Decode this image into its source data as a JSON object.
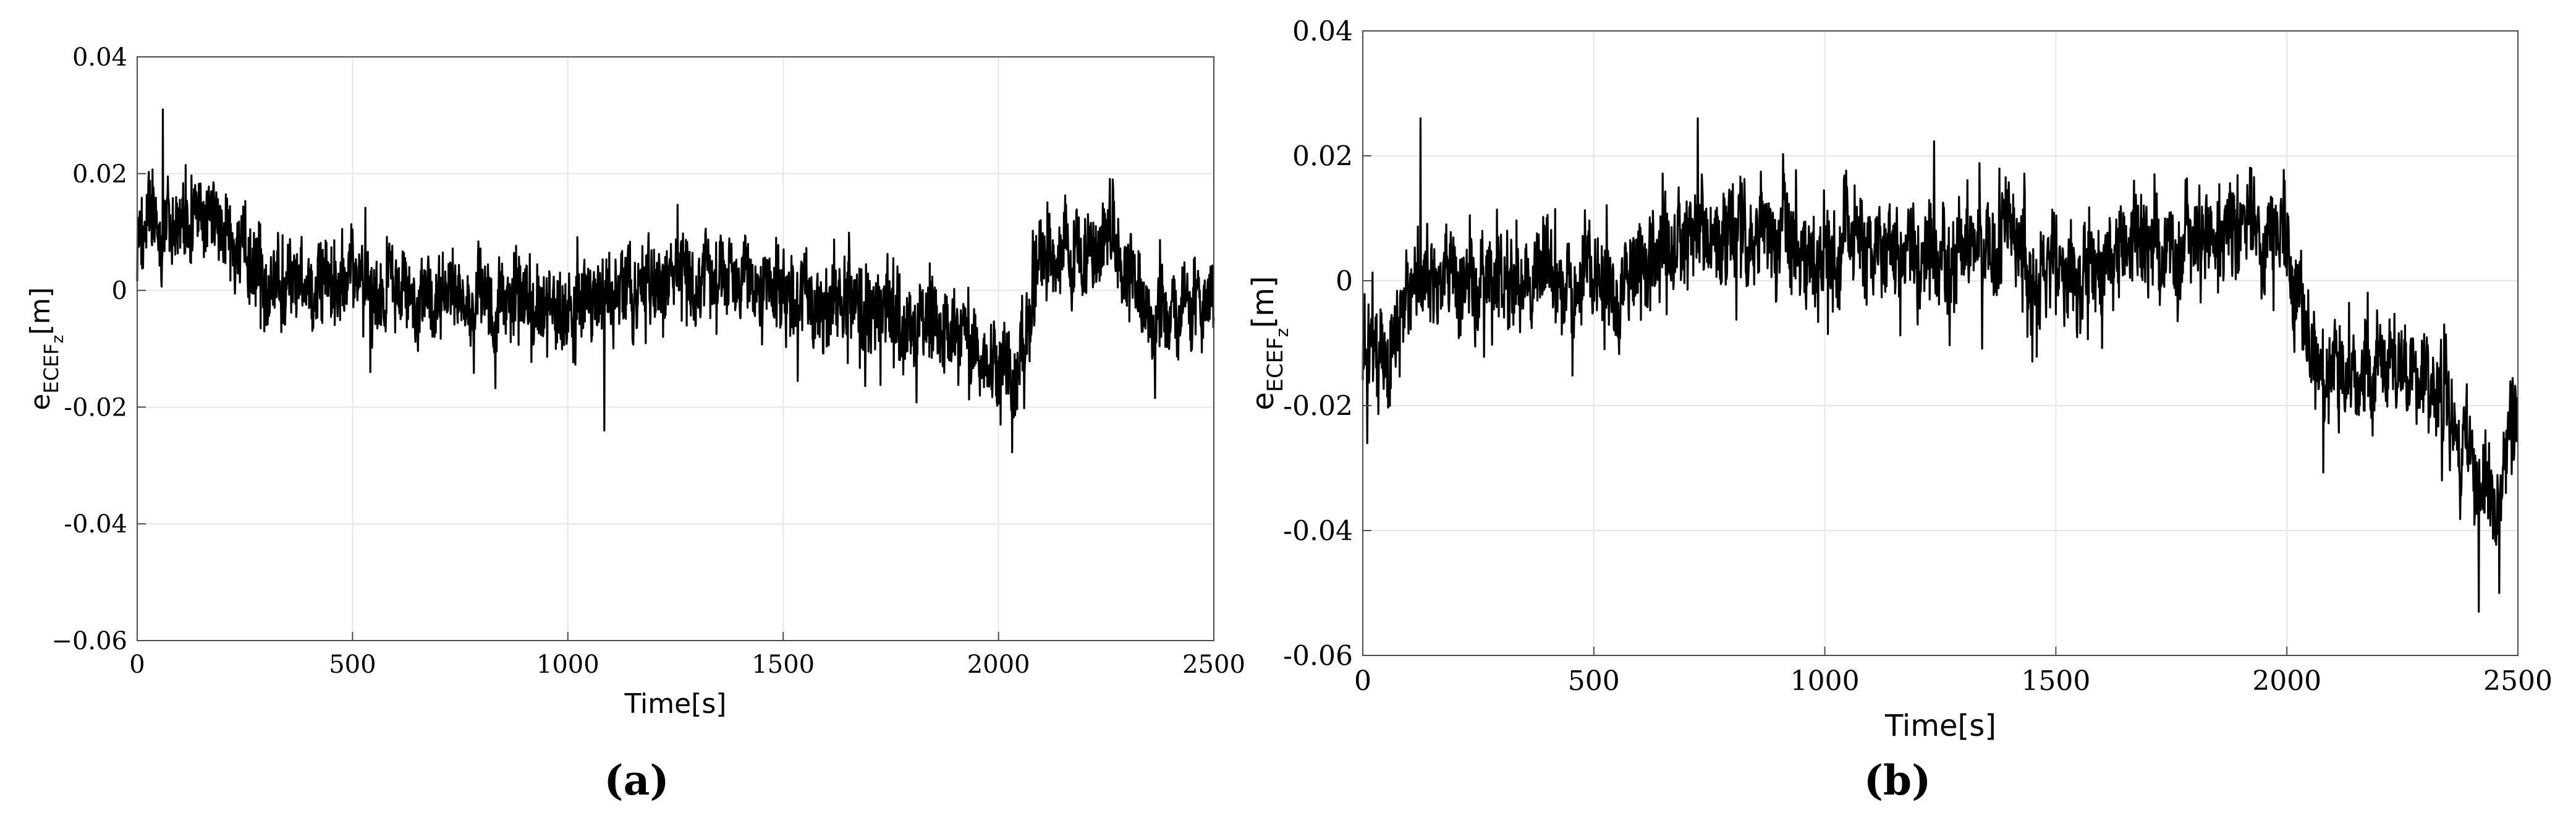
{
  "chart_data": [
    {
      "type": "line",
      "caption": "(a)",
      "xlabel": "Time[s]",
      "ylabel_base": "e",
      "ylabel_subscript": "ECEF",
      "ylabel_sub_subscript": "z",
      "ylabel_unit": "[m]",
      "xlim": [
        0,
        2500
      ],
      "ylim": [
        -0.06,
        0.04
      ],
      "xticks": [
        0,
        500,
        1000,
        1500,
        2000,
        2500
      ],
      "xtick_labels": [
        "0",
        "500",
        "1000",
        "1500",
        "2000",
        "2500"
      ],
      "yticks": [
        -0.06,
        -0.04,
        -0.02,
        0,
        0.02,
        0.04
      ],
      "ytick_labels": [
        "−0.06",
        "-0.04",
        "-0.02",
        "0",
        "0.02",
        "0.04"
      ],
      "grid": true,
      "series_color": "#000000",
      "trend": {
        "x": [
          0,
          50,
          100,
          150,
          200,
          250,
          300,
          400,
          500,
          600,
          700,
          800,
          900,
          1000,
          1100,
          1200,
          1300,
          1400,
          1500,
          1600,
          1700,
          1800,
          1900,
          1950,
          2000,
          2050,
          2100,
          2150,
          2200,
          2250,
          2300,
          2350,
          2400,
          2450,
          2500
        ],
        "y": [
          0.009,
          0.012,
          0.012,
          0.013,
          0.011,
          0.006,
          0.003,
          0.001,
          0.002,
          0.0,
          0.0,
          0.0,
          -0.002,
          -0.003,
          -0.001,
          0.001,
          0.002,
          0.001,
          0.0,
          -0.002,
          -0.003,
          -0.006,
          -0.007,
          -0.01,
          -0.013,
          -0.011,
          0.005,
          0.007,
          0.006,
          0.007,
          0.004,
          -0.003,
          -0.004,
          -0.003,
          -0.002
        ]
      },
      "noise_amplitude": 0.007,
      "extremes": [
        {
          "x": 60,
          "y": 0.031
        },
        {
          "x": 1085,
          "y": -0.024
        },
        {
          "x": 2005,
          "y": -0.023
        },
        {
          "x": 2265,
          "y": 0.019
        }
      ]
    },
    {
      "type": "line",
      "caption": "(b)",
      "xlabel": "Time[s]",
      "ylabel_base": "e",
      "ylabel_subscript": "ECEF",
      "ylabel_sub_subscript": "z",
      "ylabel_unit": "[m]",
      "xlim": [
        0,
        2500
      ],
      "ylim": [
        -0.06,
        0.04
      ],
      "xticks": [
        0,
        500,
        1000,
        1500,
        2000,
        2500
      ],
      "xtick_labels": [
        "0",
        "500",
        "1000",
        "1500",
        "2000",
        "2500"
      ],
      "yticks": [
        -0.06,
        -0.04,
        -0.02,
        0,
        0.02,
        0.04
      ],
      "ytick_labels": [
        "-0.06",
        "-0.04",
        "-0.02",
        "0",
        "0.02",
        "0.04"
      ],
      "grid": true,
      "series_color": "#000000",
      "trend": {
        "x": [
          0,
          25,
          50,
          100,
          150,
          200,
          300,
          400,
          500,
          600,
          700,
          800,
          900,
          1000,
          1100,
          1200,
          1300,
          1400,
          1500,
          1600,
          1700,
          1800,
          1900,
          1950,
          2000,
          2020,
          2050,
          2100,
          2200,
          2300,
          2350,
          2400,
          2430,
          2460,
          2500
        ],
        "y": [
          -0.012,
          -0.012,
          -0.008,
          -0.004,
          0.0,
          0.0,
          0.0,
          0.001,
          -0.002,
          0.003,
          0.006,
          0.007,
          0.006,
          0.006,
          0.005,
          0.004,
          0.005,
          0.005,
          0.002,
          0.002,
          0.006,
          0.007,
          0.008,
          0.008,
          0.007,
          0.0,
          -0.012,
          -0.016,
          -0.013,
          -0.015,
          -0.022,
          -0.028,
          -0.035,
          -0.038,
          -0.018
        ]
      },
      "noise_amplitude": 0.0075,
      "extremes": [
        {
          "x": 125,
          "y": 0.026
        },
        {
          "x": 725,
          "y": 0.026
        },
        {
          "x": 2415,
          "y": -0.053
        },
        {
          "x": 2460,
          "y": -0.05
        },
        {
          "x": 10,
          "y": -0.026
        }
      ]
    }
  ]
}
